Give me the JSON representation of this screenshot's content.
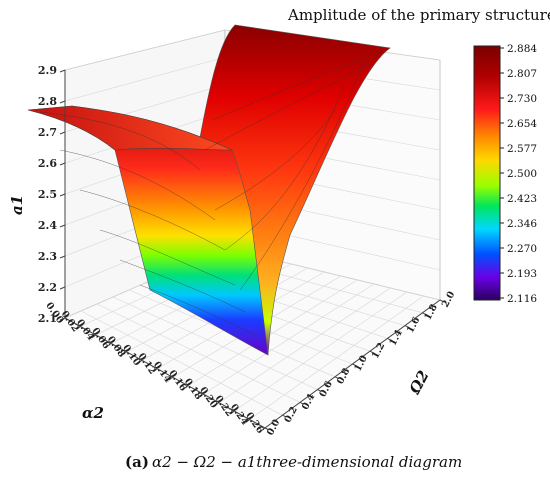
{
  "chart_data": {
    "type": "surface3d",
    "title": "Amplitude of the primary structure",
    "caption": {
      "panel": "(a)",
      "text": "α2 − Ω2 − a1three-dimensional diagram"
    },
    "axes": {
      "x": {
        "label": "α2",
        "range": [
          0.0,
          0.26
        ],
        "ticks": [
          "0.00",
          "0.02",
          "0.04",
          "0.06",
          "0.08",
          "0.10",
          "0.12",
          "0.14",
          "0.16",
          "0.18",
          "0.20",
          "0.22",
          "0.24",
          "0.26"
        ]
      },
      "y": {
        "label": "Ω2",
        "range": [
          0.0,
          2.0
        ],
        "ticks": [
          "0.0",
          "0.2",
          "0.4",
          "0.6",
          "0.8",
          "1.0",
          "1.2",
          "1.4",
          "1.6",
          "1.8",
          "2.0"
        ]
      },
      "z": {
        "label": "a1",
        "range": [
          2.1,
          2.9
        ],
        "ticks": [
          "2.1",
          "2.2",
          "2.3",
          "2.4",
          "2.5",
          "2.6",
          "2.7",
          "2.8",
          "2.9"
        ]
      }
    },
    "grid": true,
    "colorbar": {
      "position": "right",
      "ticks": [
        "2.884",
        "2.807",
        "2.730",
        "2.654",
        "2.577",
        "2.500",
        "2.423",
        "2.346",
        "2.270",
        "2.193",
        "2.116"
      ],
      "min": 2.116,
      "max": 2.884
    },
    "surface": {
      "description_points_alpha2": [
        0.0,
        0.02,
        0.04,
        0.06,
        0.08,
        0.1,
        0.12,
        0.14,
        0.16,
        0.18,
        0.2,
        0.22,
        0.24,
        0.26
      ],
      "a1_at_omega2_0": [
        2.78,
        2.75,
        2.72,
        2.7,
        2.69,
        2.66,
        2.58,
        2.4,
        2.14,
        2.12,
        2.13,
        2.14,
        2.3,
        2.7
      ],
      "a1_at_omega2_2": [
        2.73,
        2.7,
        2.68,
        2.66,
        2.65,
        2.62,
        2.52,
        2.32,
        2.14,
        2.12,
        2.4,
        2.72,
        2.86,
        2.88
      ]
    }
  }
}
